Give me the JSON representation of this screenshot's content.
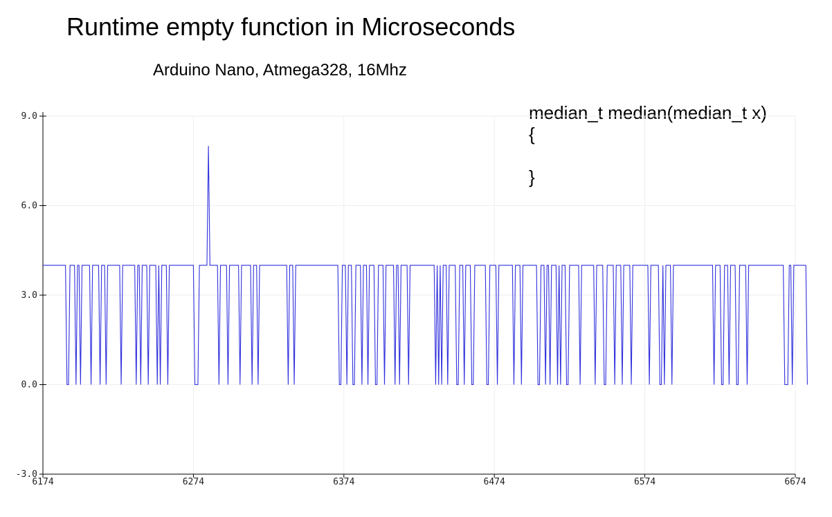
{
  "chart_data": {
    "type": "line",
    "title": "Runtime empty function in Microseconds",
    "subtitle": "Arduino Nano, Atmega328, 16Mhz",
    "annotation_lines": [
      "median_t median(median_t x)",
      "{",
      "",
      "}"
    ],
    "xlabel": "",
    "ylabel": "",
    "xlim": [
      6174,
      6674
    ],
    "ylim": [
      -3.0,
      9.0
    ],
    "x_ticks": [
      6174,
      6274,
      6374,
      6474,
      6574,
      6674
    ],
    "y_ticks": [
      "-3.0",
      "0.0",
      "3.0",
      "6.0",
      "9.0"
    ],
    "grid": true,
    "legend": "none",
    "colors": {
      "series": "#3030dd",
      "grid": "#eeeeee",
      "axis": "#000000"
    },
    "series": [
      {
        "x_start": 6174,
        "x_step": 1,
        "values": [
          4,
          4,
          4,
          4,
          4,
          4,
          4,
          4,
          4,
          4,
          4,
          4,
          4,
          4,
          4,
          4,
          0,
          0,
          4,
          4,
          4,
          4,
          0,
          4,
          4,
          0,
          4,
          4,
          4,
          4,
          4,
          4,
          0,
          4,
          4,
          4,
          4,
          4,
          0,
          4,
          4,
          4,
          0,
          4,
          4,
          4,
          4,
          4,
          4,
          4,
          4,
          4,
          0,
          4,
          4,
          4,
          4,
          4,
          4,
          4,
          4,
          4,
          0,
          4,
          4,
          0,
          4,
          4,
          4,
          4,
          0,
          4,
          4,
          4,
          4,
          4,
          0,
          4,
          0,
          4,
          4,
          4,
          4,
          0,
          4,
          4,
          4,
          4,
          4,
          4,
          4,
          4,
          4,
          4,
          4,
          4,
          4,
          4,
          4,
          4,
          4,
          0,
          0,
          0,
          4,
          4,
          4,
          4,
          4,
          4,
          8,
          4,
          4,
          4,
          4,
          4,
          4,
          0,
          4,
          4,
          4,
          4,
          4,
          0,
          4,
          4,
          4,
          4,
          4,
          4,
          4,
          0,
          4,
          4,
          4,
          4,
          4,
          4,
          4,
          0,
          4,
          4,
          4,
          0,
          4,
          4,
          4,
          4,
          4,
          4,
          4,
          4,
          4,
          4,
          4,
          4,
          4,
          4,
          4,
          4,
          4,
          4,
          4,
          0,
          4,
          4,
          4,
          0,
          4,
          4,
          4,
          4,
          4,
          4,
          4,
          4,
          4,
          4,
          4,
          4,
          4,
          4,
          4,
          4,
          4,
          4,
          4,
          4,
          4,
          4,
          4,
          4,
          4,
          4,
          4,
          4,
          4,
          0,
          0,
          4,
          4,
          4,
          0,
          4,
          4,
          4,
          0,
          0,
          4,
          4,
          4,
          4,
          0,
          4,
          4,
          4,
          0,
          4,
          4,
          4,
          4,
          0,
          0,
          4,
          4,
          4,
          4,
          0,
          4,
          4,
          4,
          4,
          4,
          4,
          0,
          4,
          4,
          0,
          4,
          4,
          4,
          4,
          4,
          0,
          4,
          4,
          4,
          4,
          4,
          4,
          4,
          4,
          4,
          4,
          4,
          4,
          4,
          4,
          4,
          4,
          4,
          0,
          4,
          0,
          4,
          0,
          4,
          4,
          4,
          0,
          4,
          4,
          4,
          4,
          4,
          0,
          0,
          4,
          4,
          4,
          0,
          4,
          4,
          4,
          4,
          0,
          0,
          4,
          4,
          4,
          4,
          4,
          4,
          4,
          4,
          0,
          0,
          4,
          4,
          4,
          4,
          4,
          0,
          4,
          4,
          4,
          4,
          4,
          4,
          4,
          4,
          4,
          4,
          0,
          4,
          4,
          4,
          4,
          0,
          4,
          4,
          4,
          4,
          4,
          4,
          4,
          4,
          4,
          4,
          0,
          0,
          4,
          4,
          4,
          0,
          4,
          4,
          0,
          4,
          4,
          4,
          4,
          0,
          4,
          0,
          4,
          4,
          4,
          0,
          0,
          4,
          4,
          4,
          4,
          4,
          4,
          4,
          0,
          4,
          4,
          4,
          4,
          4,
          4,
          4,
          4,
          4,
          0,
          4,
          4,
          4,
          4,
          4,
          0,
          0,
          4,
          4,
          4,
          4,
          4,
          0,
          4,
          4,
          4,
          4,
          0,
          4,
          4,
          4,
          4,
          4,
          0,
          4,
          4,
          4,
          4,
          4,
          4,
          4,
          4,
          4,
          4,
          4,
          0,
          4,
          4,
          4,
          4,
          4,
          4,
          0,
          0,
          4,
          0,
          4,
          4,
          4,
          4,
          0,
          4,
          4,
          4,
          4,
          4,
          4,
          4,
          4,
          4,
          4,
          4,
          4,
          4,
          4,
          4,
          4,
          4,
          4,
          4,
          4,
          4,
          4,
          4,
          4,
          4,
          4,
          4,
          0,
          4,
          4,
          4,
          4,
          0,
          0,
          4,
          4,
          4,
          0,
          4,
          4,
          4,
          4,
          0,
          0,
          4,
          4,
          4,
          4,
          4,
          0,
          4,
          4,
          4,
          4,
          4,
          4,
          4,
          4,
          4,
          4,
          4,
          4,
          4,
          4,
          4,
          4,
          4,
          4,
          4,
          4,
          4,
          4,
          4,
          4,
          0,
          0,
          0,
          4,
          4,
          0,
          4,
          4,
          4,
          4,
          4,
          4,
          4,
          4,
          4,
          0
        ]
      }
    ]
  }
}
